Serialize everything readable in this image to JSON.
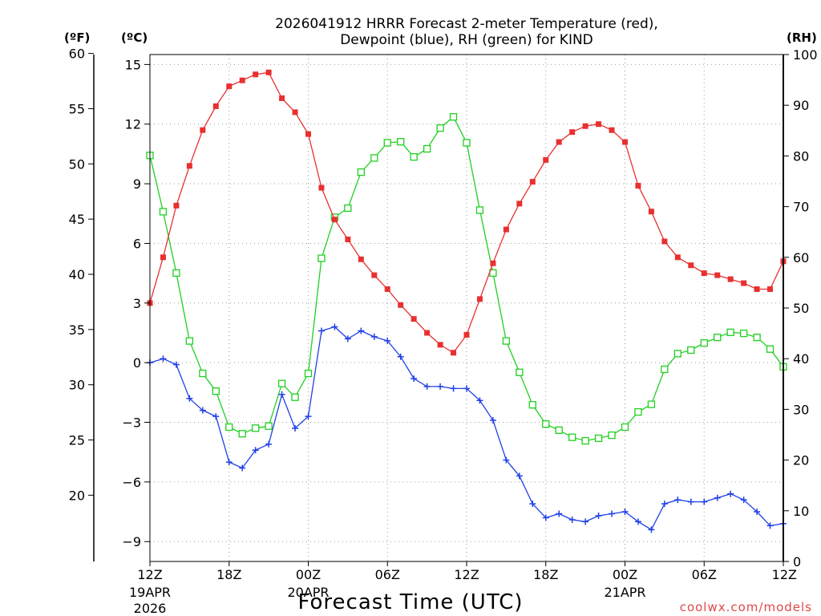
{
  "chart_data": {
    "type": "line",
    "title_lines": [
      "2026041912 HRRR Forecast 2-meter Temperature (red),",
      "Dewpoint (blue), RH (green) for KIND"
    ],
    "xlabel": "Forecast Time (UTC)",
    "credit": "coolwx.com/models",
    "units": {
      "fahrenheit": "(ºF)",
      "celsius": "(ºC)",
      "rh": "(RH)"
    },
    "y_celsius": {
      "range": [
        -10,
        15.5
      ],
      "ticks": [
        15,
        12,
        9,
        6,
        3,
        0,
        -3,
        -6,
        -9
      ],
      "tick_labels": [
        "15",
        "12",
        "9",
        "6",
        "3",
        "0",
        "−3",
        "−6",
        "−9"
      ]
    },
    "y_fahrenheit": {
      "range": [
        14,
        59.9
      ],
      "ticks": [
        60,
        55,
        50,
        45,
        40,
        35,
        30,
        25,
        20
      ],
      "tick_labels": [
        "60",
        "55",
        "50",
        "45",
        "40",
        "35",
        "30",
        "25",
        "20"
      ]
    },
    "y_rh": {
      "range": [
        0,
        100
      ],
      "ticks": [
        100,
        90,
        80,
        70,
        60,
        50,
        40,
        30,
        20,
        10,
        0
      ],
      "tick_labels": [
        "100",
        "90",
        "80",
        "70",
        "60",
        "50",
        "40",
        "30",
        "20",
        "10",
        "0"
      ]
    },
    "x": {
      "range": [
        0,
        48
      ],
      "unit": "forecast hour",
      "ticks": [
        {
          "hour": 0,
          "label": "12Z",
          "sub1": "19APR",
          "sub2": "2026"
        },
        {
          "hour": 6,
          "label": "18Z",
          "sub1": "",
          "sub2": ""
        },
        {
          "hour": 12,
          "label": "00Z",
          "sub1": "20APR",
          "sub2": ""
        },
        {
          "hour": 18,
          "label": "06Z",
          "sub1": "",
          "sub2": ""
        },
        {
          "hour": 24,
          "label": "12Z",
          "sub1": "",
          "sub2": ""
        },
        {
          "hour": 30,
          "label": "18Z",
          "sub1": "",
          "sub2": ""
        },
        {
          "hour": 36,
          "label": "00Z",
          "sub1": "21APR",
          "sub2": ""
        },
        {
          "hour": 42,
          "label": "06Z",
          "sub1": "",
          "sub2": ""
        },
        {
          "hour": 48,
          "label": "12Z",
          "sub1": "",
          "sub2": ""
        }
      ]
    },
    "series": [
      {
        "name": "2-meter Temperature",
        "axis": "celsius",
        "color": "#e83030",
        "marker": "filled-square",
        "values": [
          3.0,
          5.3,
          7.9,
          9.9,
          11.7,
          12.9,
          13.9,
          14.2,
          14.5,
          14.6,
          13.3,
          12.6,
          11.5,
          8.8,
          7.2,
          6.2,
          5.2,
          4.4,
          3.7,
          2.9,
          2.2,
          1.5,
          0.9,
          0.5,
          1.4,
          3.2,
          5.0,
          6.7,
          8.0,
          9.1,
          10.2,
          11.1,
          11.6,
          11.9,
          12.0,
          11.7,
          11.1,
          8.9,
          7.6,
          6.1,
          5.3,
          4.9,
          4.5,
          4.4,
          4.2,
          4.0,
          3.7,
          3.7,
          5.1
        ]
      },
      {
        "name": "Dewpoint",
        "axis": "celsius",
        "color": "#2040e8",
        "marker": "plus",
        "values": [
          0.0,
          0.2,
          -0.1,
          -1.8,
          -2.4,
          -2.7,
          -5.0,
          -5.3,
          -4.4,
          -4.1,
          -1.6,
          -3.3,
          -2.7,
          1.6,
          1.8,
          1.2,
          1.6,
          1.3,
          1.1,
          0.3,
          -0.8,
          -1.2,
          -1.2,
          -1.3,
          -1.3,
          -1.9,
          -2.9,
          -4.9,
          -5.7,
          -7.1,
          -7.8,
          -7.6,
          -7.9,
          -8.0,
          -7.7,
          -7.6,
          -7.5,
          -8.0,
          -8.4,
          -7.1,
          -6.9,
          -7.0,
          -7.0,
          -6.8,
          -6.6,
          -6.9,
          -7.5,
          -8.2,
          -8.1
        ]
      },
      {
        "name": "RH",
        "axis": "rh",
        "color": "#20d020",
        "marker": "open-square",
        "values": [
          80.1,
          69.0,
          56.9,
          43.5,
          37.1,
          33.6,
          26.5,
          25.2,
          26.3,
          26.7,
          35.1,
          32.4,
          37.1,
          59.8,
          67.9,
          69.7,
          76.8,
          79.6,
          82.6,
          82.8,
          79.8,
          81.4,
          85.5,
          87.7,
          82.6,
          69.3,
          56.9,
          43.5,
          37.3,
          30.9,
          27.1,
          25.9,
          24.5,
          23.8,
          24.3,
          24.9,
          26.5,
          29.5,
          31.0,
          37.9,
          41.0,
          41.7,
          43.1,
          44.2,
          45.2,
          45.0,
          44.2,
          41.9,
          38.4
        ]
      }
    ]
  }
}
